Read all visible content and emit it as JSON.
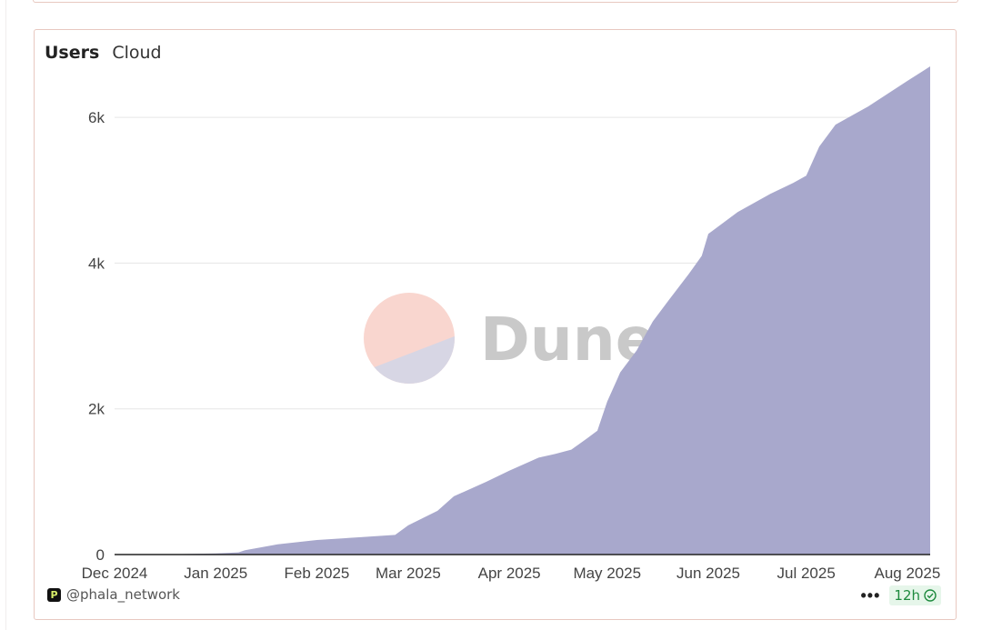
{
  "tabs": {
    "active": "Users",
    "other": "Cloud"
  },
  "watermark": {
    "text": "Dune",
    "top_color": "#f9d6cf",
    "bottom_color": "#d7d6e4"
  },
  "footer": {
    "handle": "@phala_network",
    "more": "•••",
    "refresh_badge": "12h",
    "badge_color": "#1e8a3e"
  },
  "colors": {
    "area_fill": "#a8a8cc",
    "axis": "#222222",
    "grid": "#e6e6e6"
  },
  "chart_data": {
    "type": "area",
    "title": "",
    "xlabel": "",
    "ylabel": "",
    "ylim": [
      0,
      6700
    ],
    "y_ticks": [
      0,
      2000,
      4000,
      6000
    ],
    "y_tick_labels": [
      "0",
      "2k",
      "4k",
      "6k"
    ],
    "x_ticks": [
      "2024-12-01",
      "2025-01-01",
      "2025-02-01",
      "2025-03-01",
      "2025-04-01",
      "2025-05-01",
      "2025-06-01",
      "2025-07-01",
      "2025-08-01"
    ],
    "x_tick_labels": [
      "Dec 2024",
      "Jan 2025",
      "Feb 2025",
      "Mar 2025",
      "Apr 2025",
      "May 2025",
      "Jun 2025",
      "Jul 2025",
      "Aug 2025"
    ],
    "grid": true,
    "legend": "none",
    "series": [
      {
        "x": [
          "2024-12-01",
          "2024-12-15",
          "2025-01-01",
          "2025-01-08",
          "2025-01-10",
          "2025-01-15",
          "2025-01-20",
          "2025-02-01",
          "2025-02-15",
          "2025-02-25",
          "2025-03-01",
          "2025-03-10",
          "2025-03-15",
          "2025-03-25",
          "2025-04-01",
          "2025-04-10",
          "2025-04-15",
          "2025-04-20",
          "2025-04-25",
          "2025-04-28",
          "2025-05-01",
          "2025-05-04",
          "2025-05-05",
          "2025-05-10",
          "2025-05-15",
          "2025-05-20",
          "2025-05-26",
          "2025-05-30",
          "2025-06-01",
          "2025-06-10",
          "2025-06-20",
          "2025-06-27",
          "2025-07-01",
          "2025-07-05",
          "2025-07-10",
          "2025-07-20",
          "2025-08-01",
          "2025-08-08"
        ],
        "y": [
          0,
          0,
          15,
          30,
          60,
          100,
          140,
          200,
          240,
          270,
          400,
          600,
          800,
          1000,
          1150,
          1330,
          1380,
          1440,
          1600,
          1700,
          2100,
          2400,
          2500,
          2800,
          3200,
          3500,
          3850,
          4100,
          4400,
          4700,
          4950,
          5100,
          5200,
          5600,
          5900,
          6150,
          6500,
          6700
        ]
      }
    ]
  }
}
